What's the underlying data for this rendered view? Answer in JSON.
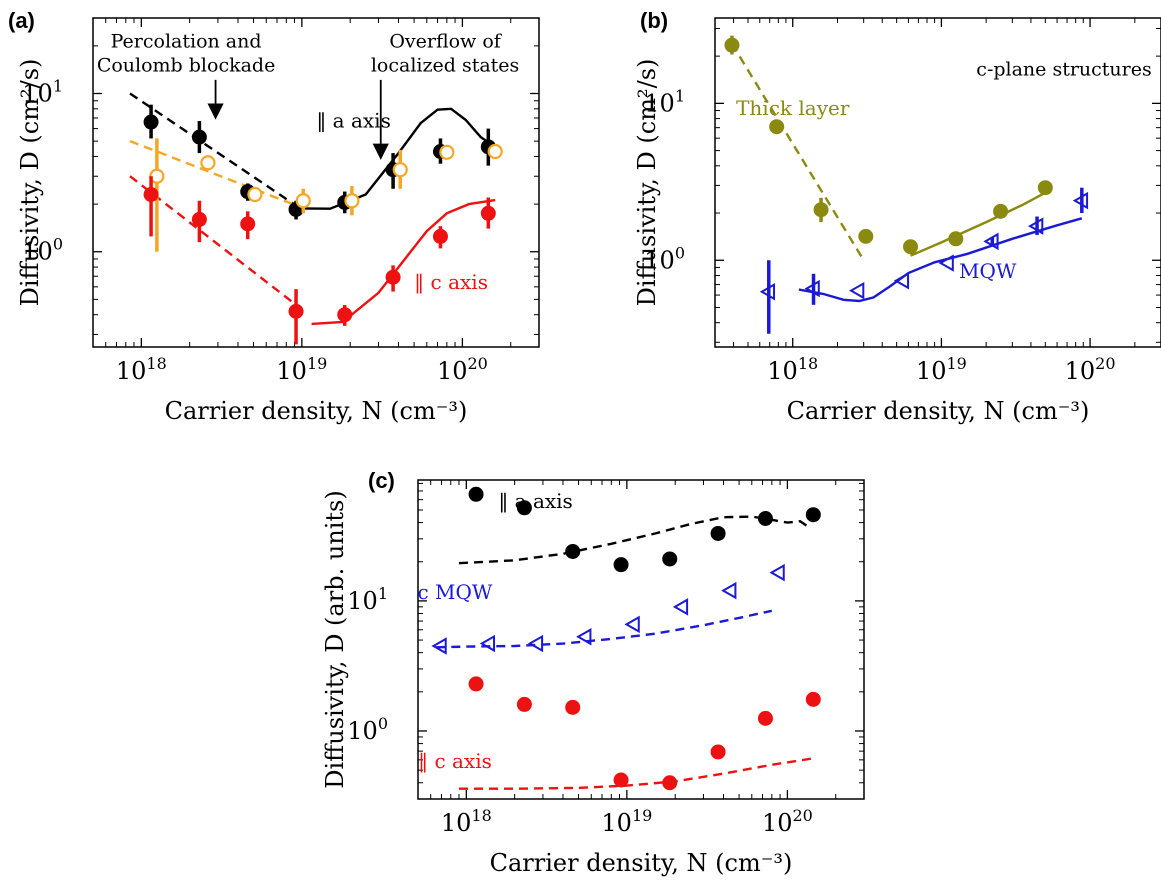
{
  "chart_data": [
    {
      "type": "scatter",
      "panel_label": "(a)",
      "xlabel": "Carrier density, N (cm⁻³)",
      "ylabel": "Diffusivity, D (cm²/s)",
      "x_scale": "log",
      "y_scale": "log",
      "xlim": [
        5e+17,
        3e+20
      ],
      "ylim": [
        0.25,
        30
      ],
      "x_ticks": [
        {
          "value": 1e+18,
          "label": "10^18"
        },
        {
          "value": 1e+19,
          "label": "10^19"
        },
        {
          "value": 1e+20,
          "label": "10^20"
        }
      ],
      "y_ticks": [
        {
          "value": 1,
          "label": "10^0"
        },
        {
          "value": 10,
          "label": "10^1"
        }
      ],
      "annotations": [
        {
          "text": "Percolation and",
          "x": 1.9e+18,
          "y": 19.5
        },
        {
          "text": "Coulomb blockade",
          "x": 1.9e+18,
          "y": 13.8
        },
        {
          "text": "Overflow of",
          "x": 7.8e+19,
          "y": 19.5
        },
        {
          "text": "localized states",
          "x": 7.8e+19,
          "y": 13.8
        }
      ],
      "arrows": [
        {
          "x": 2.9e+18,
          "y_from": 12.2,
          "y_to": 7.0
        },
        {
          "x": 3.1e+19,
          "y_from": 12.2,
          "y_to": 3.9
        }
      ],
      "series": [
        {
          "name": "‖ a axis",
          "marker": "filled-circle",
          "color": "#000000",
          "label_pos": {
            "x": 2.1e+19,
            "y": 6.1
          },
          "points": [
            {
              "x": 1.15e+18,
              "y": 6.6,
              "lo": 5.2,
              "hi": 8.5
            },
            {
              "x": 2.3e+18,
              "y": 5.3,
              "lo": 4.2,
              "hi": 6.7
            },
            {
              "x": 4.6e+18,
              "y": 2.4,
              "lo": 2.1,
              "hi": 2.7
            },
            {
              "x": 9.2e+18,
              "y": 1.85,
              "lo": 1.6,
              "hi": 2.1
            },
            {
              "x": 1.85e+19,
              "y": 2.05,
              "lo": 1.75,
              "hi": 2.4
            },
            {
              "x": 3.7e+19,
              "y": 3.3,
              "lo": 2.5,
              "hi": 4.2
            },
            {
              "x": 7.3e+19,
              "y": 4.3,
              "lo": 3.6,
              "hi": 5.2
            },
            {
              "x": 1.45e+20,
              "y": 4.6,
              "lo": 3.5,
              "hi": 6.0
            }
          ]
        },
        {
          "name": "",
          "marker": "open-circle",
          "color": "#f5a623",
          "points": [
            {
              "x": 1.25e+18,
              "y": 3.0,
              "lo": 1.0,
              "hi": 5.2
            },
            {
              "x": 2.6e+18,
              "y": 3.65,
              "lo": 3.3,
              "hi": 4.0
            },
            {
              "x": 5.1e+18,
              "y": 2.3,
              "lo": 2.1,
              "hi": 2.5
            },
            {
              "x": 1.02e+19,
              "y": 2.1,
              "lo": 1.75,
              "hi": 2.5
            },
            {
              "x": 2.05e+19,
              "y": 2.1,
              "lo": 1.7,
              "hi": 2.6
            },
            {
              "x": 4.1e+19,
              "y": 3.3,
              "lo": 2.5,
              "hi": 4.4
            },
            {
              "x": 8e+19,
              "y": 4.25,
              "lo": 3.9,
              "hi": 4.6
            },
            {
              "x": 1.6e+20,
              "y": 4.3,
              "lo": 4.1,
              "hi": 4.5
            }
          ]
        },
        {
          "name": "‖ c axis",
          "marker": "filled-circle",
          "color": "#ee1111",
          "label_pos": {
            "x": 8.5e+19,
            "y": 0.58
          },
          "points": [
            {
              "x": 1.15e+18,
              "y": 2.3,
              "lo": 1.25,
              "hi": 3.0
            },
            {
              "x": 2.3e+18,
              "y": 1.6,
              "lo": 1.15,
              "hi": 2.1
            },
            {
              "x": 4.6e+18,
              "y": 1.5,
              "lo": 1.2,
              "hi": 1.8
            },
            {
              "x": 9.2e+18,
              "y": 0.42,
              "lo": 0.26,
              "hi": 0.58
            },
            {
              "x": 1.85e+19,
              "y": 0.4,
              "lo": 0.34,
              "hi": 0.46
            },
            {
              "x": 3.7e+19,
              "y": 0.69,
              "lo": 0.56,
              "hi": 0.82
            },
            {
              "x": 7.3e+19,
              "y": 1.25,
              "lo": 1.05,
              "hi": 1.45
            },
            {
              "x": 1.45e+20,
              "y": 1.75,
              "lo": 1.4,
              "hi": 2.2
            }
          ]
        }
      ],
      "lines": [
        {
          "color": "#000000",
          "style": "dashed",
          "points": [
            [
              8.5e+17,
              10.0
            ],
            [
              1e+19,
              1.85
            ]
          ]
        },
        {
          "color": "#f5a623",
          "style": "dashed",
          "points": [
            [
              8.5e+17,
              5.0
            ],
            [
              1e+19,
              1.9
            ]
          ]
        },
        {
          "color": "#ee1111",
          "style": "dashed",
          "points": [
            [
              8.5e+17,
              3.0
            ],
            [
              9.5e+18,
              0.45
            ]
          ]
        },
        {
          "color": "#000000",
          "style": "solid",
          "points": [
            [
              9.5e+18,
              1.88
            ],
            [
              1.5e+19,
              1.87
            ],
            [
              2.5e+19,
              2.3
            ],
            [
              4e+19,
              4.2
            ],
            [
              5.5e+19,
              6.5
            ],
            [
              7e+19,
              7.9
            ],
            [
              8.5e+19,
              8.0
            ],
            [
              1.05e+20,
              6.8
            ],
            [
              1.3e+20,
              5.3
            ],
            [
              1.6e+20,
              4.6
            ]
          ]
        },
        {
          "color": "#ee1111",
          "style": "solid",
          "points": [
            [
              1.15e+19,
              0.35
            ],
            [
              1.8e+19,
              0.36
            ],
            [
              3e+19,
              0.55
            ],
            [
              4.5e+19,
              0.93
            ],
            [
              6e+19,
              1.35
            ],
            [
              8e+19,
              1.75
            ],
            [
              1.1e+20,
              2.0
            ],
            [
              1.6e+20,
              2.12
            ]
          ]
        }
      ]
    },
    {
      "type": "scatter",
      "panel_label": "(b)",
      "xlabel": "Carrier density, N (cm⁻³)",
      "ylabel": "Diffusivity, D (cm²/s)",
      "x_scale": "log",
      "y_scale": "log",
      "xlim": [
        3e+17,
        3e+20
      ],
      "ylim": [
        0.28,
        35
      ],
      "x_ticks": [
        {
          "value": 1e+18,
          "label": "10^18"
        },
        {
          "value": 1e+19,
          "label": "10^19"
        },
        {
          "value": 1e+20,
          "label": "10^20"
        }
      ],
      "y_ticks": [
        {
          "value": 1,
          "label": "10^0"
        },
        {
          "value": 10,
          "label": "10^1"
        }
      ],
      "annotations": [
        {
          "text": "c-plane structures",
          "x": 2.6e+20,
          "y": 15.0
        }
      ],
      "series": [
        {
          "name": "Thick layer",
          "marker": "filled-circle",
          "color": "#8a8a10",
          "label_pos": {
            "x": 1e+18,
            "y": 8.4
          },
          "points": [
            {
              "x": 3.9e+17,
              "y": 23.5,
              "lo": 20.5,
              "hi": 27.0
            },
            {
              "x": 7.8e+17,
              "y": 7.1,
              "lo": 6.4,
              "hi": 7.8
            },
            {
              "x": 1.55e+18,
              "y": 2.1,
              "lo": 1.75,
              "hi": 2.5
            },
            {
              "x": 3.1e+18,
              "y": 1.42
            },
            {
              "x": 6.2e+18,
              "y": 1.22
            },
            {
              "x": 1.25e+19,
              "y": 1.37
            },
            {
              "x": 2.5e+19,
              "y": 2.05
            },
            {
              "x": 5e+19,
              "y": 2.9,
              "lo": 2.65,
              "hi": 3.15
            }
          ]
        },
        {
          "name": "MQW",
          "marker": "open-triangle-left",
          "color": "#1a1ad6",
          "label_pos": {
            "x": 2.05e+19,
            "y": 0.77
          },
          "points": [
            {
              "x": 6.9e+17,
              "y": 0.63,
              "lo": 0.34,
              "hi": 1.0
            },
            {
              "x": 1.38e+18,
              "y": 0.66,
              "lo": 0.52,
              "hi": 0.82
            },
            {
              "x": 2.75e+18,
              "y": 0.64
            },
            {
              "x": 5.5e+18,
              "y": 0.74
            },
            {
              "x": 1.1e+19,
              "y": 0.96
            },
            {
              "x": 2.2e+19,
              "y": 1.32,
              "lo": 1.25,
              "hi": 1.4
            },
            {
              "x": 4.4e+19,
              "y": 1.65,
              "lo": 1.45,
              "hi": 1.9
            },
            {
              "x": 8.8e+19,
              "y": 2.4,
              "lo": 2.0,
              "hi": 2.9
            }
          ]
        }
      ],
      "lines": [
        {
          "color": "#8a8a10",
          "style": "dashed",
          "points": [
            [
              3.9e+17,
              24.0
            ],
            [
              3e+18,
              1.0
            ]
          ]
        },
        {
          "color": "#8a8a10",
          "style": "solid",
          "points": [
            [
              6.2e+18,
              1.07
            ],
            [
              1e+19,
              1.3
            ],
            [
              2e+19,
              1.75
            ],
            [
              3.5e+19,
              2.25
            ],
            [
              5.2e+19,
              2.75
            ]
          ]
        },
        {
          "color": "#1a1ad6",
          "style": "solid",
          "points": [
            [
              1.1e+18,
              0.65
            ],
            [
              1.6e+18,
              0.61
            ],
            [
              2.2e+18,
              0.56
            ],
            [
              2.8e+18,
              0.55
            ],
            [
              3.5e+18,
              0.58
            ],
            [
              4.5e+18,
              0.68
            ],
            [
              6e+18,
              0.83
            ],
            [
              9e+18,
              0.97
            ],
            [
              1.5e+19,
              1.1
            ],
            [
              3e+19,
              1.37
            ],
            [
              6e+19,
              1.67
            ],
            [
              8.8e+19,
              1.85
            ]
          ]
        }
      ]
    },
    {
      "type": "scatter",
      "panel_label": "(c)",
      "xlabel": "Carrier density, N (cm⁻³)",
      "ylabel": "Diffusivity, D (arb. units)",
      "x_scale": "log",
      "y_scale": "log",
      "xlim": [
        5e+17,
        3e+20
      ],
      "ylim": [
        0.3,
        85
      ],
      "x_ticks": [
        {
          "value": 1e+18,
          "label": "10^18"
        },
        {
          "value": 1e+19,
          "label": "10^19"
        },
        {
          "value": 1e+20,
          "label": "10^20"
        }
      ],
      "y_ticks": [
        {
          "value": 1,
          "label": "10^0"
        },
        {
          "value": 10,
          "label": "10^1"
        }
      ],
      "series": [
        {
          "name": "‖ a axis",
          "marker": "filled-circle",
          "color": "#000000",
          "label_pos": {
            "x": 2.7e+18,
            "y": 52
          },
          "points": [
            {
              "x": 1.15e+18,
              "y": 66
            },
            {
              "x": 2.3e+18,
              "y": 52
            },
            {
              "x": 4.6e+18,
              "y": 24
            },
            {
              "x": 9.2e+18,
              "y": 19
            },
            {
              "x": 1.85e+19,
              "y": 21
            },
            {
              "x": 3.7e+19,
              "y": 33
            },
            {
              "x": 7.3e+19,
              "y": 43
            },
            {
              "x": 1.45e+20,
              "y": 46
            }
          ]
        },
        {
          "name": "c MQW",
          "marker": "open-triangle-left",
          "color": "#1a1ad6",
          "label_pos": {
            "x": 8.5e+17,
            "y": 10.3
          },
          "points": [
            {
              "x": 6.9e+17,
              "y": 4.5
            },
            {
              "x": 1.38e+18,
              "y": 4.7
            },
            {
              "x": 2.75e+18,
              "y": 4.7
            },
            {
              "x": 5.5e+18,
              "y": 5.3
            },
            {
              "x": 1.1e+19,
              "y": 6.6
            },
            {
              "x": 2.2e+19,
              "y": 9.0
            },
            {
              "x": 4.4e+19,
              "y": 12.0
            },
            {
              "x": 8.8e+19,
              "y": 16.5
            }
          ]
        },
        {
          "name": "‖ c axis",
          "marker": "filled-circle",
          "color": "#ee1111",
          "label_pos": {
            "x": 8.5e+17,
            "y": 0.52
          },
          "points": [
            {
              "x": 1.15e+18,
              "y": 2.3
            },
            {
              "x": 2.3e+18,
              "y": 1.6
            },
            {
              "x": 4.6e+18,
              "y": 1.52
            },
            {
              "x": 9.2e+18,
              "y": 0.42
            },
            {
              "x": 1.85e+19,
              "y": 0.4
            },
            {
              "x": 3.7e+19,
              "y": 0.69
            },
            {
              "x": 7.3e+19,
              "y": 1.25
            },
            {
              "x": 1.45e+20,
              "y": 1.75
            }
          ]
        }
      ],
      "lines": [
        {
          "color": "#000000",
          "style": "dashed",
          "points": [
            [
              9e+17,
              19.5
            ],
            [
              2e+18,
              20.5
            ],
            [
              4e+18,
              23
            ],
            [
              8e+18,
              27.5
            ],
            [
              1.5e+19,
              33
            ],
            [
              2.5e+19,
              39
            ],
            [
              4e+19,
              44
            ],
            [
              6e+19,
              44.5
            ],
            [
              8e+19,
              42
            ],
            [
              1e+20,
              40
            ],
            [
              1.2e+20,
              41
            ],
            [
              1.4e+20,
              36
            ]
          ]
        },
        {
          "color": "#1a1ad6",
          "style": "dashed",
          "points": [
            [
              6.5e+17,
              4.4
            ],
            [
              1e+18,
              4.45
            ],
            [
              2e+18,
              4.5
            ],
            [
              4e+18,
              4.7
            ],
            [
              8e+18,
              5.1
            ],
            [
              1.5e+19,
              5.6
            ],
            [
              3e+19,
              6.5
            ],
            [
              5e+19,
              7.4
            ],
            [
              8e+19,
              8.4
            ]
          ]
        },
        {
          "color": "#ee1111",
          "style": "dashed",
          "points": [
            [
              9e+17,
              0.36
            ],
            [
              2e+18,
              0.36
            ],
            [
              5e+18,
              0.365
            ],
            [
              1e+19,
              0.38
            ],
            [
              2e+19,
              0.41
            ],
            [
              4e+19,
              0.47
            ],
            [
              8e+19,
              0.55
            ],
            [
              1.5e+20,
              0.62
            ]
          ]
        }
      ]
    }
  ]
}
